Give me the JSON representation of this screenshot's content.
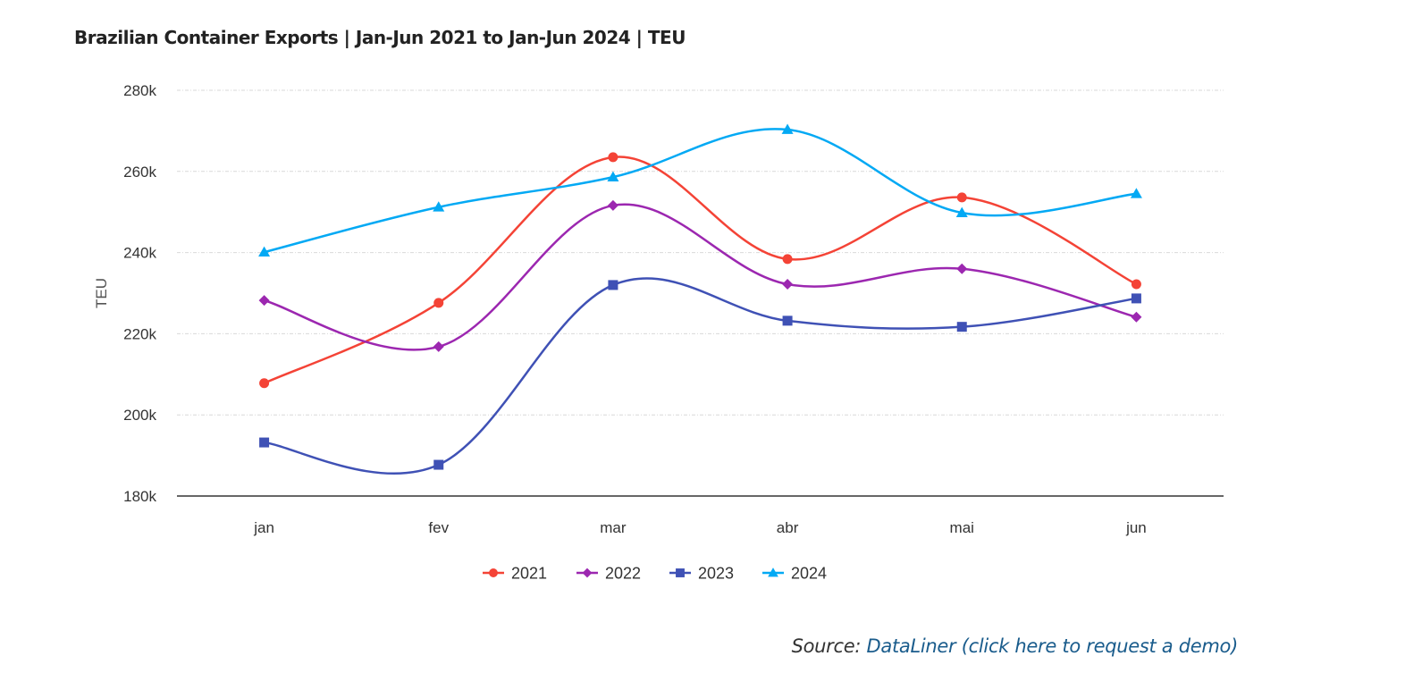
{
  "chart_data": {
    "type": "line",
    "title": "Brazilian Container Exports | Jan-Jun 2021 to Jan-Jun 2024 | TEU",
    "xlabel": "",
    "ylabel": "TEU",
    "categories": [
      "jan",
      "fev",
      "mar",
      "abr",
      "mai",
      "jun"
    ],
    "ylim": [
      180000,
      280000
    ],
    "yticks": [
      180000,
      200000,
      220000,
      240000,
      260000,
      280000
    ],
    "ytick_labels": [
      "180k",
      "200k",
      "220k",
      "240k",
      "260k",
      "280k"
    ],
    "grid": true,
    "legend_position": "bottom-center",
    "series": [
      {
        "name": "2021",
        "color": "#f44336",
        "marker": "circle",
        "values": [
          207800,
          227600,
          263500,
          238400,
          253600,
          232200
        ]
      },
      {
        "name": "2022",
        "color": "#9c27b0",
        "marker": "diamond",
        "values": [
          228200,
          216800,
          251600,
          232200,
          236000,
          224100
        ]
      },
      {
        "name": "2023",
        "color": "#3f51b5",
        "marker": "square",
        "values": [
          193200,
          187700,
          232000,
          223200,
          221700,
          228700
        ]
      },
      {
        "name": "2024",
        "color": "#03a9f4",
        "marker": "triangle",
        "values": [
          240100,
          251200,
          258600,
          270300,
          249800,
          254500
        ]
      }
    ]
  },
  "source": {
    "prefix": "Source: ",
    "link_text": "DataLiner (click here to request a demo)"
  }
}
